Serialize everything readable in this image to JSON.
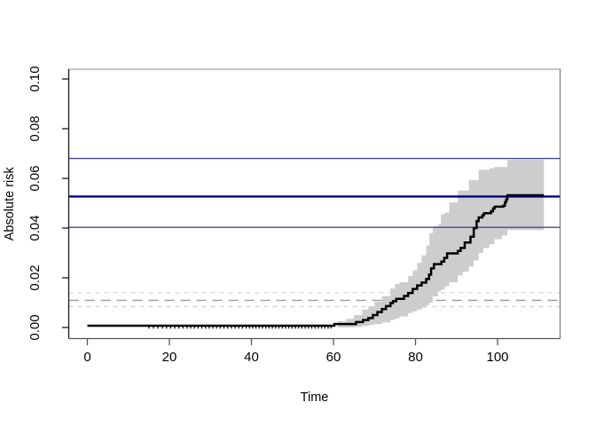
{
  "figure": {
    "background_color": "#ffffff",
    "description": "R-style absolute risk step curve with pointwise confidence band, horizontal navy reference lines and gray dashed reference lines"
  },
  "chart_data": {
    "type": "line",
    "subtype": "step-function-with-confidence-band",
    "title": "",
    "xlabel": "Time",
    "ylabel": "Absolute risk",
    "xlim": [
      -4.5,
      115.5
    ],
    "ylim": [
      -0.0045,
      0.104
    ],
    "x_ticks": [
      0,
      20,
      40,
      60,
      80,
      100
    ],
    "y_ticks": [
      0.0,
      0.02,
      0.04,
      0.06,
      0.08,
      0.1
    ],
    "y_tick_labels": [
      "0.00",
      "0.02",
      "0.04",
      "0.06",
      "0.08",
      "0.10"
    ],
    "grid": false,
    "legend": "none",
    "series": [
      {
        "name": "cumulative-absolute-risk",
        "type": "step",
        "color": "#000000",
        "points": [
          [
            0,
            0.0007
          ],
          [
            60.2,
            0.0014
          ],
          [
            65.5,
            0.0022
          ],
          [
            67.2,
            0.003
          ],
          [
            68.5,
            0.0038
          ],
          [
            69.6,
            0.005
          ],
          [
            70.7,
            0.0062
          ],
          [
            71.8,
            0.0074
          ],
          [
            72.8,
            0.0086
          ],
          [
            73.9,
            0.0098
          ],
          [
            74.5,
            0.0106
          ],
          [
            75.3,
            0.0115
          ],
          [
            77.2,
            0.0127
          ],
          [
            78.2,
            0.0139
          ],
          [
            79.3,
            0.0155
          ],
          [
            80.4,
            0.0169
          ],
          [
            81.5,
            0.0181
          ],
          [
            82.6,
            0.0195
          ],
          [
            83.3,
            0.0213
          ],
          [
            83.8,
            0.0238
          ],
          [
            84.5,
            0.0255
          ],
          [
            86.3,
            0.0265
          ],
          [
            87.0,
            0.028
          ],
          [
            87.7,
            0.0298
          ],
          [
            90.3,
            0.0308
          ],
          [
            91.0,
            0.032
          ],
          [
            92.0,
            0.0342
          ],
          [
            93.4,
            0.0365
          ],
          [
            94.2,
            0.04
          ],
          [
            94.9,
            0.0428
          ],
          [
            95.4,
            0.0443
          ],
          [
            96.3,
            0.0452
          ],
          [
            96.7,
            0.046
          ],
          [
            98.4,
            0.0468
          ],
          [
            98.9,
            0.0479
          ],
          [
            99.3,
            0.0486
          ],
          [
            101.4,
            0.049
          ],
          [
            101.8,
            0.0504
          ],
          [
            102.1,
            0.0515
          ],
          [
            102.4,
            0.0532
          ],
          [
            111.3,
            0.0532
          ]
        ]
      }
    ],
    "confidence_band": {
      "name": "pointwise-confidence-band",
      "color": "#cdcdcd",
      "points": [
        [
          61,
          0.0,
          0.0025
        ],
        [
          63,
          0.0,
          0.0035
        ],
        [
          65,
          0.0002,
          0.005
        ],
        [
          67,
          0.0006,
          0.0072
        ],
        [
          68.5,
          0.001,
          0.0085
        ],
        [
          70,
          0.0014,
          0.0104
        ],
        [
          71.8,
          0.002,
          0.0127
        ],
        [
          73.9,
          0.003,
          0.0157
        ],
        [
          75,
          0.0036,
          0.0175
        ],
        [
          76.1,
          0.0044,
          0.0182
        ],
        [
          78.2,
          0.0058,
          0.0208
        ],
        [
          79.3,
          0.0065,
          0.023
        ],
        [
          80.4,
          0.0072,
          0.026
        ],
        [
          81.5,
          0.008,
          0.029
        ],
        [
          82.6,
          0.009,
          0.033
        ],
        [
          83.4,
          0.01,
          0.038
        ],
        [
          84.2,
          0.0125,
          0.0408
        ],
        [
          85.5,
          0.0145,
          0.0415
        ],
        [
          86.2,
          0.0152,
          0.0456
        ],
        [
          87.1,
          0.0165,
          0.0462
        ],
        [
          88.2,
          0.0182,
          0.0504
        ],
        [
          90.3,
          0.021,
          0.0551
        ],
        [
          91.5,
          0.0225,
          0.0551
        ],
        [
          93.0,
          0.0245,
          0.0593
        ],
        [
          94.2,
          0.027,
          0.0593
        ],
        [
          95.4,
          0.03,
          0.0635
        ],
        [
          96.5,
          0.032,
          0.0635
        ],
        [
          98.0,
          0.0335,
          0.064
        ],
        [
          99.2,
          0.0355,
          0.0646
        ],
        [
          101.0,
          0.037,
          0.0646
        ],
        [
          102.4,
          0.0392,
          0.0675
        ],
        [
          111.3,
          0.0392,
          0.0675
        ]
      ]
    },
    "reference_lines_horizontal": [
      {
        "name": "navy-upper-reference-line",
        "value": 0.068,
        "color": "#46469b",
        "style": "solid",
        "width": 1.4
      },
      {
        "name": "navy-estimate-reference-line",
        "value": 0.0527,
        "color": "#00008b",
        "style": "solid",
        "width": 2.4
      },
      {
        "name": "navy-lower-reference-line",
        "value": 0.0403,
        "color": "#46469b",
        "style": "solid",
        "width": 1.4
      },
      {
        "name": "dashed-upper-reference-line",
        "value": 0.014,
        "color": "#cfcfcf",
        "style": "dashed",
        "width": 1.2
      },
      {
        "name": "dashed-middle-reference-line",
        "value": 0.0109,
        "color": "#9b9b9b",
        "style": "dashed-long",
        "width": 1.4
      },
      {
        "name": "dashed-lower-reference-line",
        "value": 0.0084,
        "color": "#cfcfcf",
        "style": "dashed",
        "width": 1.2
      }
    ],
    "censor_tick_times": [
      15.0,
      16.1,
      17.2,
      18.3,
      19.3,
      20.3,
      21.3,
      22.3,
      23.3,
      24.3,
      25.2,
      26.1,
      27.0,
      27.9,
      28.8,
      29.7,
      30.6,
      31.5,
      32.4,
      33.3,
      34.2,
      35.1,
      36.0,
      36.9,
      37.8,
      38.7,
      39.5,
      40.3,
      41.1,
      41.9,
      42.7,
      43.5,
      44.3,
      45.1,
      45.9,
      46.7,
      47.5,
      48.3,
      49.1,
      49.9,
      50.7,
      51.5,
      52.3,
      53.1,
      53.9,
      54.7,
      55.5,
      56.3,
      57.1,
      57.9,
      58.7,
      59.4
    ],
    "colors": {
      "curve": "#000000",
      "band": "#cdcdcd",
      "box_top": "#c9c9c9",
      "box_right": "#6f6f6f",
      "axis_left": "#1a1a1a",
      "axis_bottom": "#555555",
      "tick_text": "#000000",
      "background": "#ffffff"
    }
  }
}
